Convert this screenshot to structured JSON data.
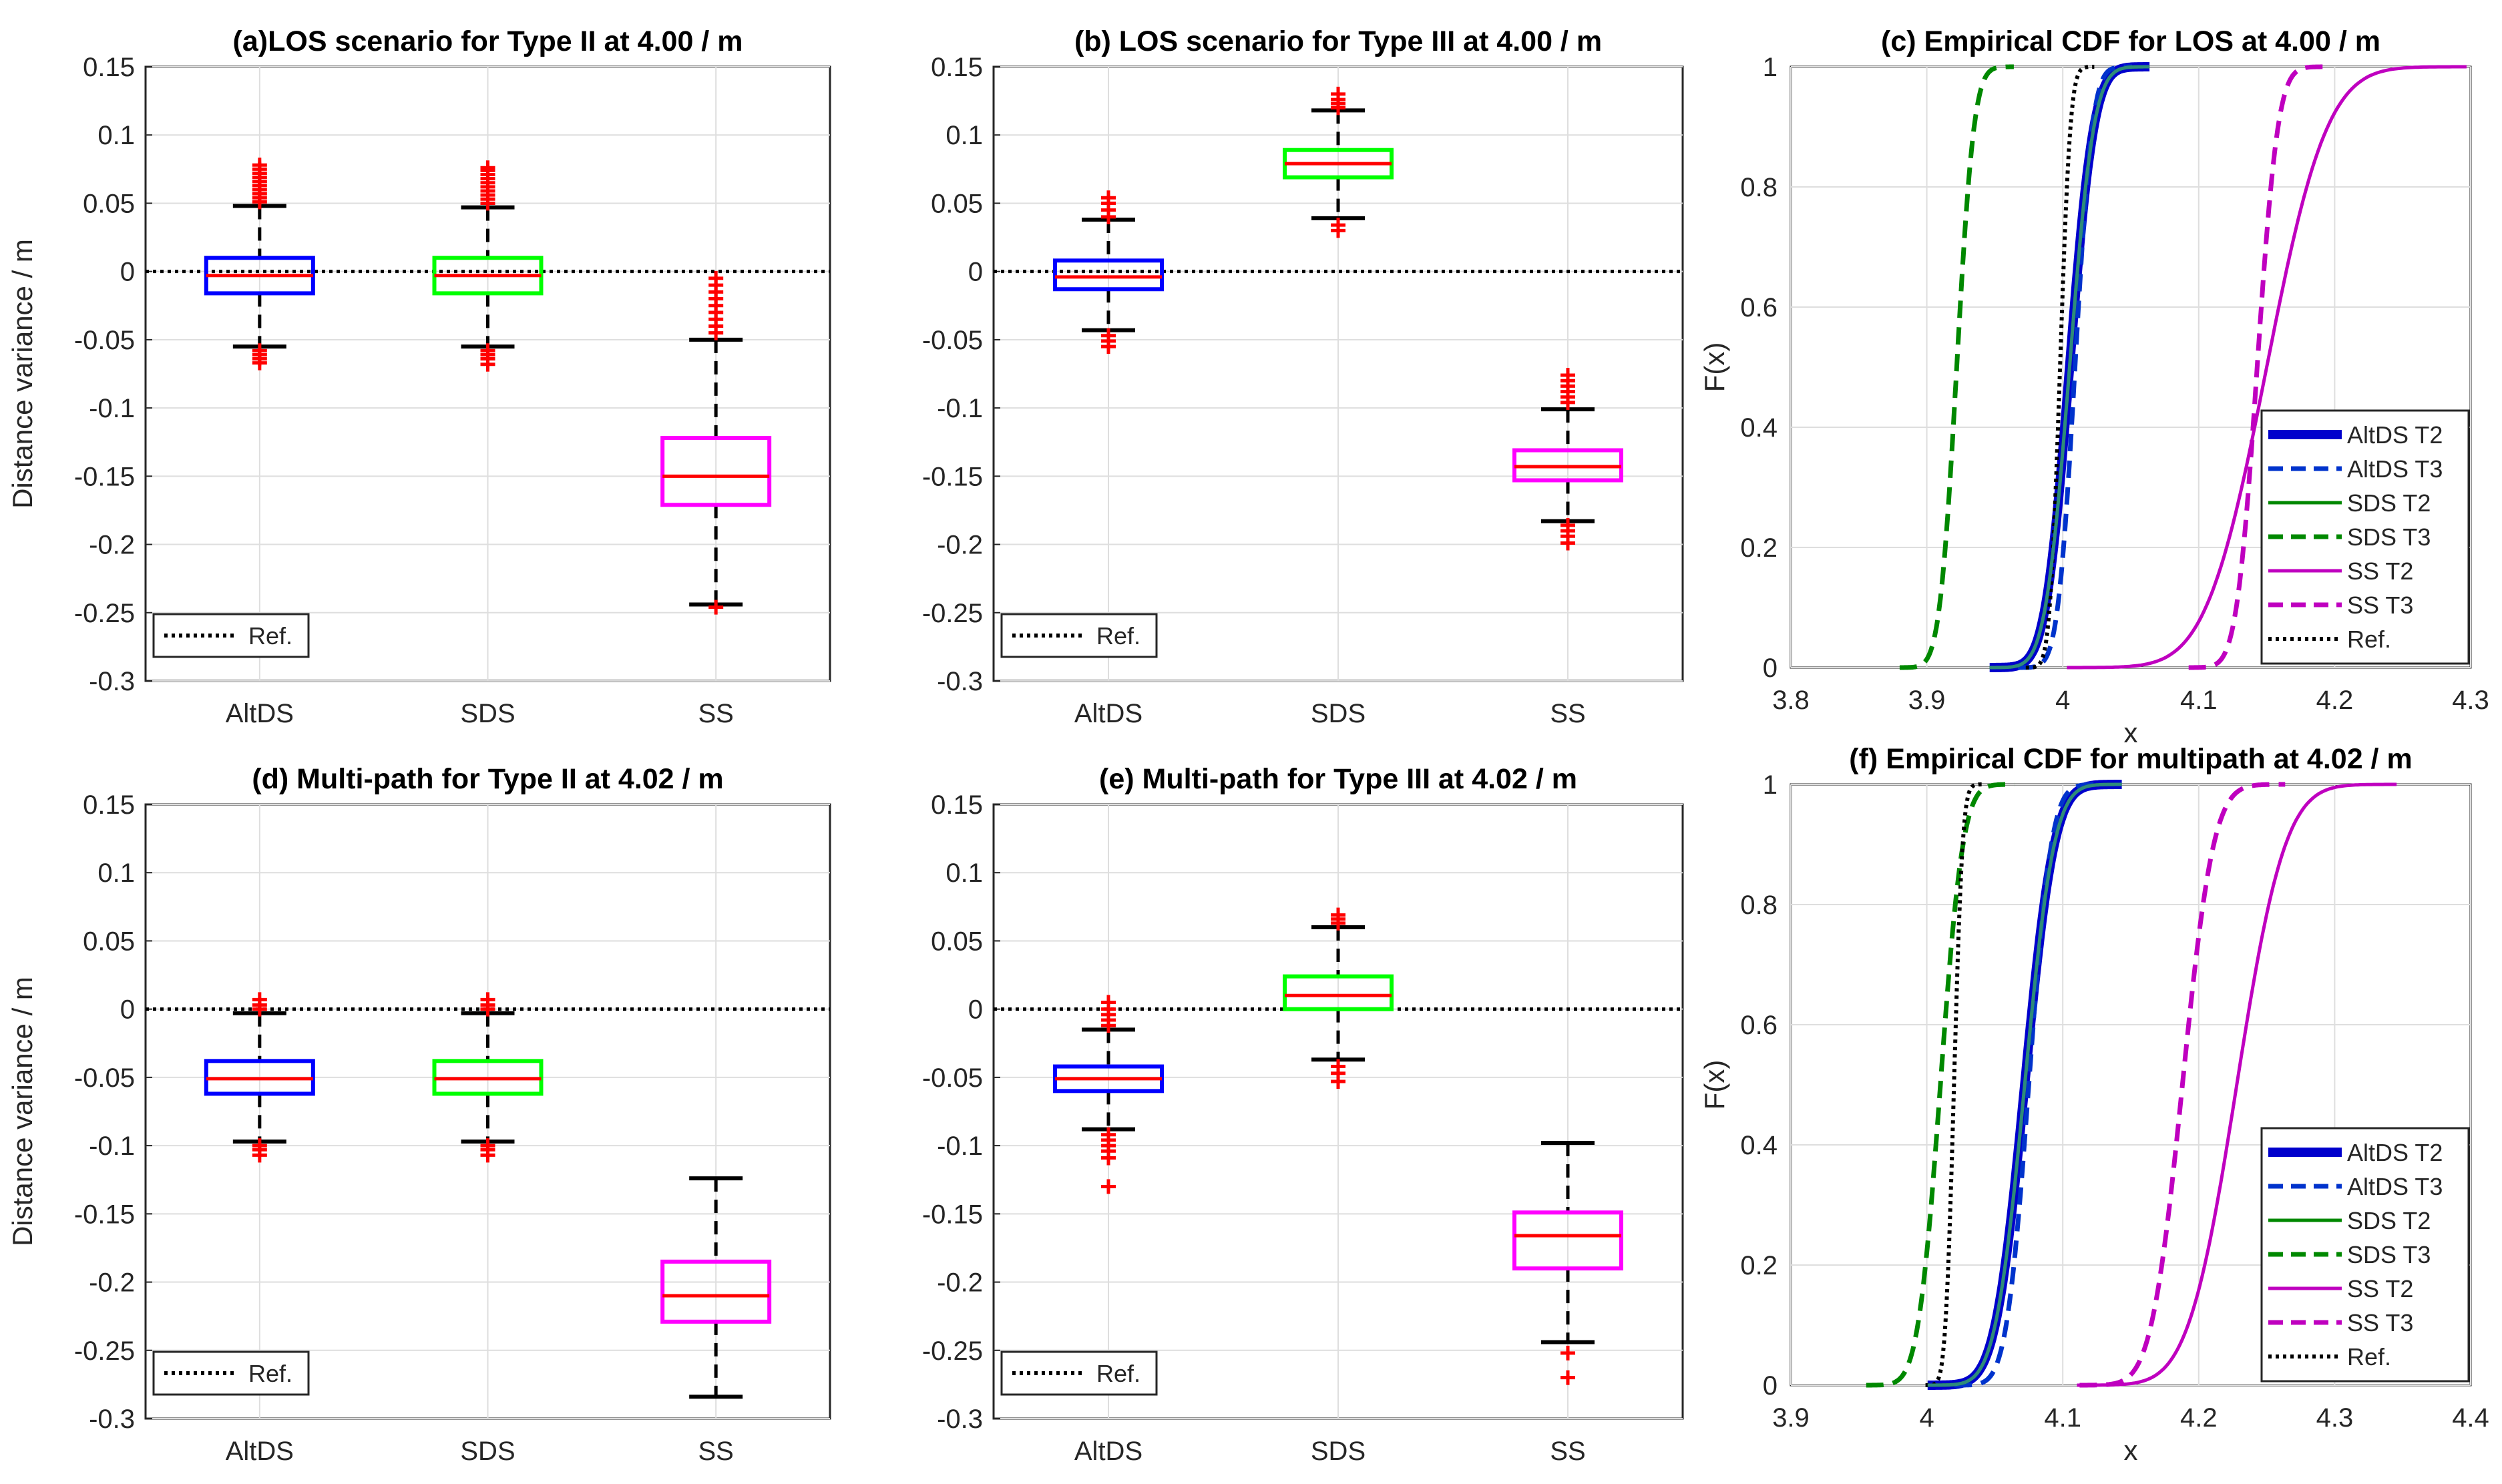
{
  "figure": "Distance variance box plots and empirical CDFs",
  "colors": {
    "altds": "#0000ff",
    "sds": "#00ff00",
    "ss": "#ff00ff",
    "median": "#ff0000",
    "outlier": "#ff0000",
    "ref": "#000000",
    "cdf_altds_t2": "#0000cc",
    "cdf_altds_t3": "#0033cc",
    "cdf_sds": "#008800",
    "cdf_ss": "#bf00bf",
    "grid": "#dedede"
  },
  "chart_data": [
    {
      "id": "a",
      "type": "box",
      "title": "(a)LOS scenario for Type II at 4.00 / m",
      "ylabel": "Distance variance / m",
      "categories": [
        "AltDS",
        "SDS",
        "SS"
      ],
      "ylim": [
        -0.3,
        0.15
      ],
      "yticks": [
        "0.15",
        "0.1",
        "0.05",
        "0",
        "-0.05",
        "-0.1",
        "-0.15",
        "-0.2",
        "-0.25",
        "-0.3"
      ],
      "yticks_val": [
        0.15,
        0.1,
        0.05,
        0,
        -0.05,
        -0.1,
        -0.15,
        -0.2,
        -0.25,
        -0.3
      ],
      "ref_value": 0,
      "legend": "Ref.",
      "boxes": [
        {
          "min": -0.055,
          "q1": -0.016,
          "median": -0.003,
          "q3": 0.01,
          "max": 0.048,
          "outliers": [
            0.051,
            0.054,
            0.057,
            0.06,
            0.063,
            0.066,
            0.069,
            0.072,
            0.075,
            0.078,
            -0.058,
            -0.061,
            -0.064,
            -0.067
          ],
          "color": "altds"
        },
        {
          "min": -0.055,
          "q1": -0.016,
          "median": -0.003,
          "q3": 0.01,
          "max": 0.047,
          "outliers": [
            0.05,
            0.053,
            0.056,
            0.059,
            0.062,
            0.065,
            0.068,
            0.071,
            0.074,
            0.076,
            -0.058,
            -0.061,
            -0.064,
            -0.068
          ],
          "color": "sds"
        },
        {
          "min": -0.244,
          "q1": -0.171,
          "median": -0.15,
          "q3": -0.122,
          "max": -0.05,
          "outliers": [
            -0.005,
            -0.01,
            -0.015,
            -0.02,
            -0.025,
            -0.03,
            -0.035,
            -0.04,
            -0.045,
            -0.246
          ],
          "color": "ss"
        }
      ]
    },
    {
      "id": "b",
      "type": "box",
      "title": "(b) LOS scenario for Type III at 4.00 / m",
      "ylabel": "",
      "categories": [
        "AltDS",
        "SDS",
        "SS"
      ],
      "ylim": [
        -0.3,
        0.15
      ],
      "yticks": [
        "0.15",
        "0.1",
        "0.05",
        "0",
        "-0.05",
        "-0.1",
        "-0.15",
        "-0.2",
        "-0.25",
        "-0.3"
      ],
      "yticks_val": [
        0.15,
        0.1,
        0.05,
        0,
        -0.05,
        -0.1,
        -0.15,
        -0.2,
        -0.25,
        -0.3
      ],
      "ref_value": 0,
      "legend": "Ref.",
      "boxes": [
        {
          "min": -0.043,
          "q1": -0.013,
          "median": -0.004,
          "q3": 0.008,
          "max": 0.038,
          "outliers": [
            0.04,
            0.045,
            0.05,
            0.054,
            -0.047,
            -0.051,
            -0.055
          ],
          "color": "altds"
        },
        {
          "min": 0.039,
          "q1": 0.069,
          "median": 0.079,
          "q3": 0.089,
          "max": 0.118,
          "outliers": [
            0.12,
            0.123,
            0.126,
            0.13,
            0.034,
            0.03
          ],
          "color": "sds"
        },
        {
          "min": -0.183,
          "q1": -0.153,
          "median": -0.143,
          "q3": -0.131,
          "max": -0.101,
          "outliers": [
            -0.076,
            -0.08,
            -0.084,
            -0.088,
            -0.092,
            -0.096,
            -0.186,
            -0.19,
            -0.194,
            -0.199
          ],
          "color": "ss"
        }
      ]
    },
    {
      "id": "c",
      "type": "line",
      "title": "(c) Empirical CDF for LOS at 4.00 / m",
      "xlabel": "x",
      "ylabel": "F(x)",
      "xlim": [
        3.8,
        4.3
      ],
      "ylim": [
        0,
        1
      ],
      "xticks": [
        "3.8",
        "3.9",
        "4",
        "4.1",
        "4.2",
        "4.3"
      ],
      "xticks_val": [
        3.8,
        3.9,
        4.0,
        4.1,
        4.2,
        4.3
      ],
      "yticks": [
        "0",
        "0.2",
        "0.4",
        "0.6",
        "0.8",
        "1"
      ],
      "yticks_val": [
        0,
        0.2,
        0.4,
        0.6,
        0.8,
        1
      ],
      "series": [
        {
          "name": "AltDS T2",
          "style": "thick",
          "color": "cdf_altds_t2",
          "mu": 4.005,
          "sd": 0.014
        },
        {
          "name": "AltDS T3",
          "style": "dash",
          "color": "cdf_altds_t3",
          "mu": 4.009,
          "sd": 0.01
        },
        {
          "name": "SDS T2",
          "style": "solid",
          "color": "cdf_sds",
          "mu": 4.005,
          "sd": 0.014
        },
        {
          "name": "SDS T3",
          "style": "dash",
          "color": "cdf_sds",
          "mu": 3.922,
          "sd": 0.01
        },
        {
          "name": "SS T2",
          "style": "solid",
          "color": "cdf_ss",
          "mu": 4.15,
          "sd": 0.035
        },
        {
          "name": "SS T3",
          "style": "dash",
          "color": "cdf_ss",
          "mu": 4.143,
          "sd": 0.012
        },
        {
          "name": "Ref.",
          "style": "dot",
          "color": "ref",
          "mu": 3.998,
          "sd": 0.006
        }
      ]
    },
    {
      "id": "d",
      "type": "box",
      "title": "(d) Multi-path for Type II at 4.02 / m",
      "ylabel": "Distance variance / m",
      "categories": [
        "AltDS",
        "SDS",
        "SS"
      ],
      "ylim": [
        -0.3,
        0.15
      ],
      "yticks": [
        "0.15",
        "0.1",
        "0.05",
        "0",
        "-0.05",
        "-0.1",
        "-0.15",
        "-0.2",
        "-0.25",
        "-0.3"
      ],
      "yticks_val": [
        0.15,
        0.1,
        0.05,
        0,
        -0.05,
        -0.1,
        -0.15,
        -0.2,
        -0.25,
        -0.3
      ],
      "ref_value": 0,
      "legend": "Ref.",
      "boxes": [
        {
          "min": -0.097,
          "q1": -0.062,
          "median": -0.051,
          "q3": -0.038,
          "max": -0.003,
          "outliers": [
            0.0,
            0.003,
            0.007,
            -0.1,
            -0.103,
            -0.107
          ],
          "color": "altds"
        },
        {
          "min": -0.097,
          "q1": -0.062,
          "median": -0.051,
          "q3": -0.038,
          "max": -0.003,
          "outliers": [
            0.0,
            0.003,
            0.007,
            -0.1,
            -0.103,
            -0.107
          ],
          "color": "sds"
        },
        {
          "min": -0.284,
          "q1": -0.229,
          "median": -0.21,
          "q3": -0.185,
          "max": -0.124,
          "outliers": [],
          "color": "ss"
        }
      ]
    },
    {
      "id": "e",
      "type": "box",
      "title": "(e)  Multi-path for Type III at 4.02 / m",
      "ylabel": "",
      "categories": [
        "AltDS",
        "SDS",
        "SS"
      ],
      "ylim": [
        -0.3,
        0.15
      ],
      "yticks": [
        "0.15",
        "0.1",
        "0.05",
        "0",
        "-0.05",
        "-0.1",
        "-0.15",
        "-0.2",
        "-0.25",
        "-0.3"
      ],
      "yticks_val": [
        0.15,
        0.1,
        0.05,
        0,
        -0.05,
        -0.1,
        -0.15,
        -0.2,
        -0.25,
        -0.3
      ],
      "ref_value": 0,
      "legend": "Ref.",
      "boxes": [
        {
          "min": -0.088,
          "q1": -0.06,
          "median": -0.051,
          "q3": -0.042,
          "max": -0.015,
          "outliers": [
            -0.012,
            -0.008,
            -0.004,
            0.0,
            0.005,
            -0.092,
            -0.096,
            -0.1,
            -0.104,
            -0.109,
            -0.13
          ],
          "color": "altds"
        },
        {
          "min": -0.037,
          "q1": 0.0,
          "median": 0.01,
          "q3": 0.024,
          "max": 0.06,
          "outliers": [
            0.063,
            0.066,
            0.069,
            -0.042,
            -0.047,
            -0.053
          ],
          "color": "sds"
        },
        {
          "min": -0.244,
          "q1": -0.19,
          "median": -0.166,
          "q3": -0.149,
          "max": -0.098,
          "outliers": [
            -0.252,
            -0.27
          ],
          "color": "ss"
        }
      ]
    },
    {
      "id": "f",
      "type": "line",
      "title": "(f) Empirical CDF for multipath at 4.02 / m",
      "xlabel": "x",
      "ylabel": "F(x)",
      "xlim": [
        3.9,
        4.4
      ],
      "ylim": [
        0,
        1
      ],
      "xticks": [
        "3.9",
        "4",
        "4.1",
        "4.2",
        "4.3",
        "4.4"
      ],
      "xticks_val": [
        3.9,
        4.0,
        4.1,
        4.2,
        4.3,
        4.4
      ],
      "yticks": [
        "0",
        "0.2",
        "0.4",
        "0.6",
        "0.8",
        "1"
      ],
      "yticks_val": [
        0,
        0.2,
        0.4,
        0.6,
        0.8,
        1
      ],
      "series": [
        {
          "name": "AltDS T2",
          "style": "thick",
          "color": "cdf_altds_t2",
          "mu": 4.072,
          "sd": 0.017
        },
        {
          "name": "AltDS T3",
          "style": "dash",
          "color": "cdf_altds_t3",
          "mu": 4.075,
          "sd": 0.013
        },
        {
          "name": "SDS T2",
          "style": "solid",
          "color": "cdf_sds",
          "mu": 4.072,
          "sd": 0.017
        },
        {
          "name": "SDS T3",
          "style": "dash",
          "color": "cdf_sds",
          "mu": 4.01,
          "sd": 0.013
        },
        {
          "name": "SS T2",
          "style": "solid",
          "color": "cdf_ss",
          "mu": 4.228,
          "sd": 0.028
        },
        {
          "name": "SS T3",
          "style": "dash",
          "color": "cdf_ss",
          "mu": 4.188,
          "sd": 0.018
        },
        {
          "name": "Ref.",
          "style": "dot",
          "color": "ref",
          "mu": 4.02,
          "sd": 0.005
        }
      ]
    }
  ]
}
